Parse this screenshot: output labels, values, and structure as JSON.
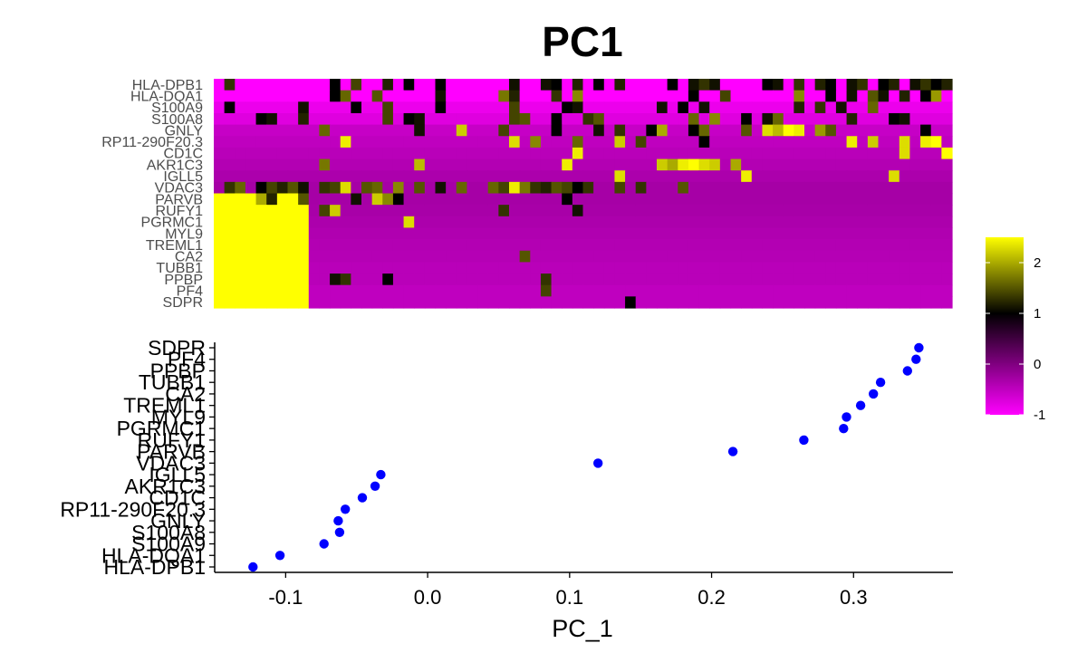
{
  "chart_data": {
    "type": "heatmap",
    "title": "PC1",
    "genes": [
      "HLA-DPB1",
      "HLA-DQA1",
      "S100A9",
      "S100A8",
      "GNLY",
      "RP11-290F20.3",
      "CD1C",
      "AKR1C3",
      "IGLL5",
      "VDAC3",
      "PARVB",
      "RUFY1",
      "PGRMC1",
      "MYL9",
      "TREML1",
      "CA2",
      "TUBB1",
      "PPBP",
      "PF4",
      "SDPR"
    ],
    "heatmap": {
      "n_cells": 70,
      "color_scale": {
        "min": -1,
        "max": 2.5,
        "low": "#FF00FF",
        "mid": "#000000",
        "high": "#FFFF00"
      },
      "legend_ticks": [
        2,
        1,
        0,
        -1
      ],
      "row_base": [
        -1,
        -1,
        -0.85,
        -0.75,
        -0.55,
        -0.5,
        -0.45,
        -0.4,
        -0.35,
        -0.3,
        -0.3,
        -0.32,
        -0.35,
        -0.38,
        -0.4,
        -0.42,
        -0.45,
        -0.45,
        -0.5,
        -0.5
      ],
      "left_block": {
        "rows": [
          10,
          11,
          12,
          13,
          14,
          15,
          16,
          17,
          18,
          19
        ],
        "cells": 9,
        "value": 2.5
      },
      "cells": [
        [
          0,
          1,
          1.3
        ],
        [
          0,
          11,
          1.0
        ],
        [
          0,
          13,
          1.4
        ],
        [
          0,
          16,
          1.2
        ],
        [
          0,
          18,
          1.0
        ],
        [
          0,
          21,
          1.0
        ],
        [
          0,
          28,
          1.1
        ],
        [
          0,
          31,
          1.1
        ],
        [
          0,
          32,
          1.0
        ],
        [
          0,
          34,
          1.2
        ],
        [
          0,
          36,
          1.0
        ],
        [
          0,
          38,
          1.2
        ],
        [
          0,
          43,
          1.0
        ],
        [
          0,
          45,
          1.1
        ],
        [
          0,
          46,
          1.3
        ],
        [
          0,
          47,
          1.1
        ],
        [
          0,
          52,
          1.0
        ],
        [
          0,
          53,
          1.1
        ],
        [
          0,
          55,
          1.3
        ],
        [
          0,
          57,
          1.2
        ],
        [
          0,
          58,
          1.0
        ],
        [
          0,
          60,
          1.1
        ],
        [
          0,
          61,
          1.3
        ],
        [
          0,
          63,
          1.0
        ],
        [
          0,
          64,
          1.2
        ],
        [
          0,
          66,
          1.1
        ],
        [
          0,
          67,
          1.3
        ],
        [
          0,
          68,
          1.0
        ],
        [
          0,
          69,
          1.2
        ],
        [
          1,
          11,
          1.0
        ],
        [
          1,
          12,
          1.6
        ],
        [
          1,
          15,
          1.5
        ],
        [
          1,
          21,
          1.1
        ],
        [
          1,
          27,
          1.7
        ],
        [
          1,
          28,
          1.2
        ],
        [
          1,
          32,
          1.3
        ],
        [
          1,
          34,
          1.8
        ],
        [
          1,
          45,
          1.0
        ],
        [
          1,
          48,
          1.4
        ],
        [
          1,
          55,
          1.8
        ],
        [
          1,
          58,
          1.0
        ],
        [
          1,
          60,
          1.1
        ],
        [
          1,
          62,
          1.5
        ],
        [
          1,
          63,
          1.1
        ],
        [
          1,
          65,
          1.2
        ],
        [
          1,
          67,
          1.0
        ],
        [
          1,
          68,
          1.9
        ],
        [
          2,
          1,
          1.0
        ],
        [
          2,
          8,
          1.1
        ],
        [
          2,
          13,
          1.0
        ],
        [
          2,
          16,
          1.4
        ],
        [
          2,
          21,
          1.0
        ],
        [
          2,
          28,
          1.4
        ],
        [
          2,
          33,
          1.0
        ],
        [
          2,
          34,
          1.1
        ],
        [
          2,
          42,
          1.1
        ],
        [
          2,
          44,
          1.0
        ],
        [
          2,
          46,
          1.1
        ],
        [
          2,
          55,
          1.2
        ],
        [
          2,
          57,
          1.3
        ],
        [
          2,
          59,
          1.1
        ],
        [
          2,
          62,
          1.6
        ],
        [
          3,
          4,
          1.0
        ],
        [
          3,
          5,
          1.1
        ],
        [
          3,
          8,
          1.2
        ],
        [
          3,
          16,
          1.4
        ],
        [
          3,
          18,
          1.0
        ],
        [
          3,
          19,
          1.1
        ],
        [
          3,
          28,
          1.4
        ],
        [
          3,
          29,
          1.5
        ],
        [
          3,
          32,
          1.0
        ],
        [
          3,
          35,
          1.3
        ],
        [
          3,
          36,
          1.5
        ],
        [
          3,
          45,
          1.6
        ],
        [
          3,
          47,
          1.8
        ],
        [
          3,
          50,
          1.0
        ],
        [
          3,
          52,
          1.1
        ],
        [
          3,
          53,
          1.6
        ],
        [
          3,
          60,
          1.2
        ],
        [
          3,
          64,
          1.0
        ],
        [
          3,
          65,
          1.1
        ],
        [
          4,
          10,
          1.6
        ],
        [
          4,
          19,
          1.1
        ],
        [
          4,
          23,
          2.2
        ],
        [
          4,
          27,
          1.4
        ],
        [
          4,
          32,
          1.0
        ],
        [
          4,
          36,
          1.1
        ],
        [
          4,
          38,
          1.3
        ],
        [
          4,
          41,
          1.0
        ],
        [
          4,
          42,
          2.0
        ],
        [
          4,
          45,
          1.0
        ],
        [
          4,
          46,
          1.6
        ],
        [
          4,
          50,
          1.5
        ],
        [
          4,
          52,
          2.3
        ],
        [
          4,
          53,
          2.1
        ],
        [
          4,
          54,
          2.5
        ],
        [
          4,
          55,
          2.4
        ],
        [
          4,
          57,
          1.9
        ],
        [
          4,
          58,
          1.5
        ],
        [
          4,
          67,
          1.0
        ],
        [
          5,
          12,
          2.4
        ],
        [
          5,
          28,
          2.3
        ],
        [
          5,
          30,
          1.8
        ],
        [
          5,
          34,
          1.6
        ],
        [
          5,
          38,
          2.2
        ],
        [
          5,
          40,
          1.4
        ],
        [
          5,
          46,
          1.0
        ],
        [
          5,
          60,
          2.4
        ],
        [
          5,
          62,
          2.2
        ],
        [
          5,
          65,
          2.3
        ],
        [
          5,
          67,
          2.4
        ],
        [
          5,
          68,
          2.5
        ],
        [
          6,
          34,
          2.4
        ],
        [
          6,
          65,
          2.3
        ],
        [
          6,
          69,
          2.5
        ],
        [
          7,
          10,
          1.7
        ],
        [
          7,
          19,
          2.1
        ],
        [
          7,
          33,
          2.4
        ],
        [
          7,
          42,
          2.2
        ],
        [
          7,
          43,
          2.0
        ],
        [
          7,
          44,
          2.4
        ],
        [
          7,
          45,
          2.5
        ],
        [
          7,
          46,
          2.3
        ],
        [
          7,
          47,
          2.2
        ],
        [
          7,
          49,
          2.0
        ],
        [
          8,
          38,
          2.3
        ],
        [
          8,
          50,
          2.4
        ],
        [
          8,
          64,
          2.3
        ],
        [
          9,
          1,
          1.3
        ],
        [
          9,
          2,
          1.6
        ],
        [
          9,
          4,
          1.0
        ],
        [
          9,
          5,
          1.4
        ],
        [
          9,
          6,
          1.2
        ],
        [
          9,
          7,
          1.5
        ],
        [
          9,
          8,
          1.1
        ],
        [
          9,
          10,
          1.3
        ],
        [
          9,
          11,
          1.4
        ],
        [
          9,
          12,
          2.3
        ],
        [
          9,
          14,
          1.5
        ],
        [
          9,
          15,
          1.6
        ],
        [
          9,
          17,
          1.8
        ],
        [
          9,
          19,
          1.5
        ],
        [
          9,
          21,
          1.1
        ],
        [
          9,
          23,
          1.6
        ],
        [
          9,
          26,
          1.6
        ],
        [
          9,
          27,
          1.4
        ],
        [
          9,
          28,
          2.4
        ],
        [
          9,
          29,
          1.7
        ],
        [
          9,
          30,
          1.3
        ],
        [
          9,
          31,
          1.2
        ],
        [
          9,
          32,
          1.5
        ],
        [
          9,
          33,
          1.4
        ],
        [
          9,
          34,
          1.0
        ],
        [
          9,
          35,
          1.3
        ],
        [
          9,
          38,
          1.4
        ],
        [
          9,
          40,
          1.3
        ],
        [
          9,
          44,
          1.5
        ],
        [
          10,
          4,
          2.0
        ],
        [
          10,
          5,
          1.2
        ],
        [
          10,
          8,
          1.5
        ],
        [
          10,
          13,
          1.1
        ],
        [
          10,
          15,
          2.2
        ],
        [
          10,
          16,
          1.8
        ],
        [
          10,
          17,
          1.0
        ],
        [
          10,
          33,
          1.0
        ],
        [
          11,
          10,
          1.4
        ],
        [
          11,
          11,
          2.2
        ],
        [
          11,
          27,
          1.3
        ],
        [
          11,
          34,
          1.1
        ],
        [
          12,
          18,
          2.3
        ],
        [
          15,
          29,
          1.5
        ],
        [
          17,
          11,
          1.1
        ],
        [
          17,
          12,
          1.3
        ],
        [
          17,
          16,
          1.0
        ],
        [
          17,
          31,
          1.3
        ],
        [
          18,
          31,
          1.4
        ],
        [
          19,
          39,
          1.0
        ]
      ]
    },
    "scatter": {
      "xlabel": "PC_1",
      "xlim": [
        -0.15,
        0.37
      ],
      "xticks": [
        -0.1,
        0.0,
        0.1,
        0.2,
        0.3
      ],
      "xtick_labels": [
        "-0.1",
        "0.0",
        "0.1",
        "0.2",
        "0.3"
      ],
      "point_color": "#0000FF",
      "values": [
        -0.123,
        -0.104,
        -0.073,
        -0.062,
        -0.063,
        -0.058,
        -0.046,
        -0.037,
        -0.033,
        0.12,
        0.215,
        0.265,
        0.293,
        0.295,
        0.305,
        0.314,
        0.319,
        0.338,
        0.344,
        0.346
      ]
    }
  }
}
